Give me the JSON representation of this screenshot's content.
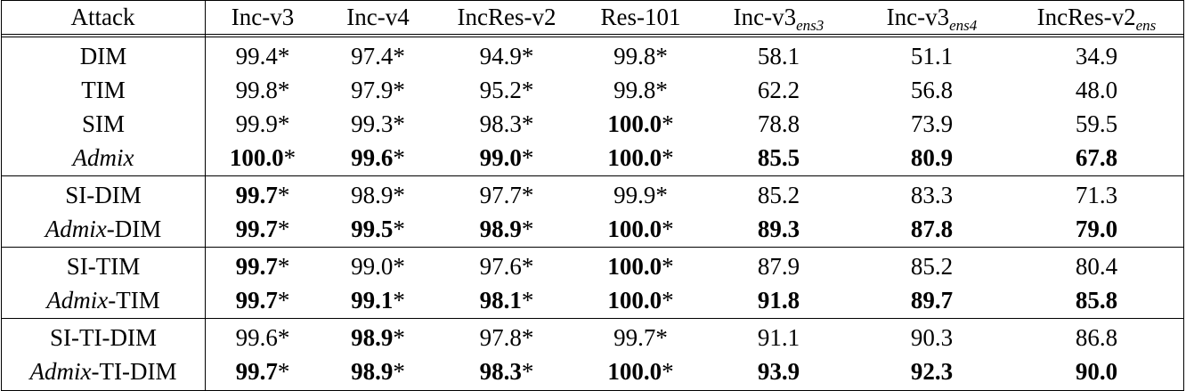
{
  "table": {
    "headers": [
      {
        "base": "Attack",
        "sub": ""
      },
      {
        "base": "Inc-v3",
        "sub": ""
      },
      {
        "base": "Inc-v4",
        "sub": ""
      },
      {
        "base": "IncRes-v2",
        "sub": ""
      },
      {
        "base": "Res-101",
        "sub": ""
      },
      {
        "base": "Inc-v3",
        "sub": "ens3"
      },
      {
        "base": "Inc-v3",
        "sub": "ens4"
      },
      {
        "base": "IncRes-v2",
        "sub": "ens"
      }
    ],
    "groups": [
      {
        "rows": [
          {
            "attack_italic": "",
            "attack_plain": "DIM",
            "cells": [
              {
                "value": "99.4",
                "bold": false,
                "star": "*"
              },
              {
                "value": "97.4",
                "bold": false,
                "star": "*"
              },
              {
                "value": "94.9",
                "bold": false,
                "star": "*"
              },
              {
                "value": "99.8",
                "bold": false,
                "star": "*"
              },
              {
                "value": "58.1",
                "bold": false,
                "star": ""
              },
              {
                "value": "51.1",
                "bold": false,
                "star": ""
              },
              {
                "value": "34.9",
                "bold": false,
                "star": ""
              }
            ]
          },
          {
            "attack_italic": "",
            "attack_plain": "TIM",
            "cells": [
              {
                "value": "99.8",
                "bold": false,
                "star": "*"
              },
              {
                "value": "97.9",
                "bold": false,
                "star": "*"
              },
              {
                "value": "95.2",
                "bold": false,
                "star": "*"
              },
              {
                "value": "99.8",
                "bold": false,
                "star": "*"
              },
              {
                "value": "62.2",
                "bold": false,
                "star": ""
              },
              {
                "value": "56.8",
                "bold": false,
                "star": ""
              },
              {
                "value": "48.0",
                "bold": false,
                "star": ""
              }
            ]
          },
          {
            "attack_italic": "",
            "attack_plain": "SIM",
            "cells": [
              {
                "value": "99.9",
                "bold": false,
                "star": "*"
              },
              {
                "value": "99.3",
                "bold": false,
                "star": "*"
              },
              {
                "value": "98.3",
                "bold": false,
                "star": "*"
              },
              {
                "value": "100.0",
                "bold": true,
                "star": "*"
              },
              {
                "value": "78.8",
                "bold": false,
                "star": ""
              },
              {
                "value": "73.9",
                "bold": false,
                "star": ""
              },
              {
                "value": "59.5",
                "bold": false,
                "star": ""
              }
            ]
          },
          {
            "attack_italic": "Admix",
            "attack_plain": "",
            "cells": [
              {
                "value": "100.0",
                "bold": true,
                "star": "*"
              },
              {
                "value": "99.6",
                "bold": true,
                "star": "*"
              },
              {
                "value": "99.0",
                "bold": true,
                "star": "*"
              },
              {
                "value": "100.0",
                "bold": true,
                "star": "*"
              },
              {
                "value": "85.5",
                "bold": true,
                "star": ""
              },
              {
                "value": "80.9",
                "bold": true,
                "star": ""
              },
              {
                "value": "67.8",
                "bold": true,
                "star": ""
              }
            ]
          }
        ]
      },
      {
        "rows": [
          {
            "attack_italic": "",
            "attack_plain": "SI-DIM",
            "cells": [
              {
                "value": "99.7",
                "bold": true,
                "star": "*"
              },
              {
                "value": "98.9",
                "bold": false,
                "star": "*"
              },
              {
                "value": "97.7",
                "bold": false,
                "star": "*"
              },
              {
                "value": "99.9",
                "bold": false,
                "star": "*"
              },
              {
                "value": "85.2",
                "bold": false,
                "star": ""
              },
              {
                "value": "83.3",
                "bold": false,
                "star": ""
              },
              {
                "value": "71.3",
                "bold": false,
                "star": ""
              }
            ]
          },
          {
            "attack_italic": "Admix",
            "attack_plain": "-DIM",
            "cells": [
              {
                "value": "99.7",
                "bold": true,
                "star": "*"
              },
              {
                "value": "99.5",
                "bold": true,
                "star": "*"
              },
              {
                "value": "98.9",
                "bold": true,
                "star": "*"
              },
              {
                "value": "100.0",
                "bold": true,
                "star": "*"
              },
              {
                "value": "89.3",
                "bold": true,
                "star": ""
              },
              {
                "value": "87.8",
                "bold": true,
                "star": ""
              },
              {
                "value": "79.0",
                "bold": true,
                "star": ""
              }
            ]
          }
        ]
      },
      {
        "rows": [
          {
            "attack_italic": "",
            "attack_plain": "SI-TIM",
            "cells": [
              {
                "value": "99.7",
                "bold": true,
                "star": "*"
              },
              {
                "value": "99.0",
                "bold": false,
                "star": "*"
              },
              {
                "value": "97.6",
                "bold": false,
                "star": "*"
              },
              {
                "value": "100.0",
                "bold": true,
                "star": "*"
              },
              {
                "value": "87.9",
                "bold": false,
                "star": ""
              },
              {
                "value": "85.2",
                "bold": false,
                "star": ""
              },
              {
                "value": "80.4",
                "bold": false,
                "star": ""
              }
            ]
          },
          {
            "attack_italic": "Admix",
            "attack_plain": "-TIM",
            "cells": [
              {
                "value": "99.7",
                "bold": true,
                "star": "*"
              },
              {
                "value": "99.1",
                "bold": true,
                "star": "*"
              },
              {
                "value": "98.1",
                "bold": true,
                "star": "*"
              },
              {
                "value": "100.0",
                "bold": true,
                "star": "*"
              },
              {
                "value": "91.8",
                "bold": true,
                "star": ""
              },
              {
                "value": "89.7",
                "bold": true,
                "star": ""
              },
              {
                "value": "85.8",
                "bold": true,
                "star": ""
              }
            ]
          }
        ]
      },
      {
        "rows": [
          {
            "attack_italic": "",
            "attack_plain": "SI-TI-DIM",
            "cells": [
              {
                "value": "99.6",
                "bold": false,
                "star": "*"
              },
              {
                "value": "98.9",
                "bold": true,
                "star": "*"
              },
              {
                "value": "97.8",
                "bold": false,
                "star": "*"
              },
              {
                "value": "99.7",
                "bold": false,
                "star": "*"
              },
              {
                "value": "91.1",
                "bold": false,
                "star": ""
              },
              {
                "value": "90.3",
                "bold": false,
                "star": ""
              },
              {
                "value": "86.8",
                "bold": false,
                "star": ""
              }
            ]
          },
          {
            "attack_italic": "Admix",
            "attack_plain": "-TI-DIM",
            "cells": [
              {
                "value": "99.7",
                "bold": true,
                "star": "*"
              },
              {
                "value": "98.9",
                "bold": true,
                "star": "*"
              },
              {
                "value": "98.3",
                "bold": true,
                "star": "*"
              },
              {
                "value": "100.0",
                "bold": true,
                "star": "*"
              },
              {
                "value": "93.9",
                "bold": true,
                "star": ""
              },
              {
                "value": "92.3",
                "bold": true,
                "star": ""
              },
              {
                "value": "90.0",
                "bold": true,
                "star": ""
              }
            ]
          }
        ]
      }
    ]
  }
}
